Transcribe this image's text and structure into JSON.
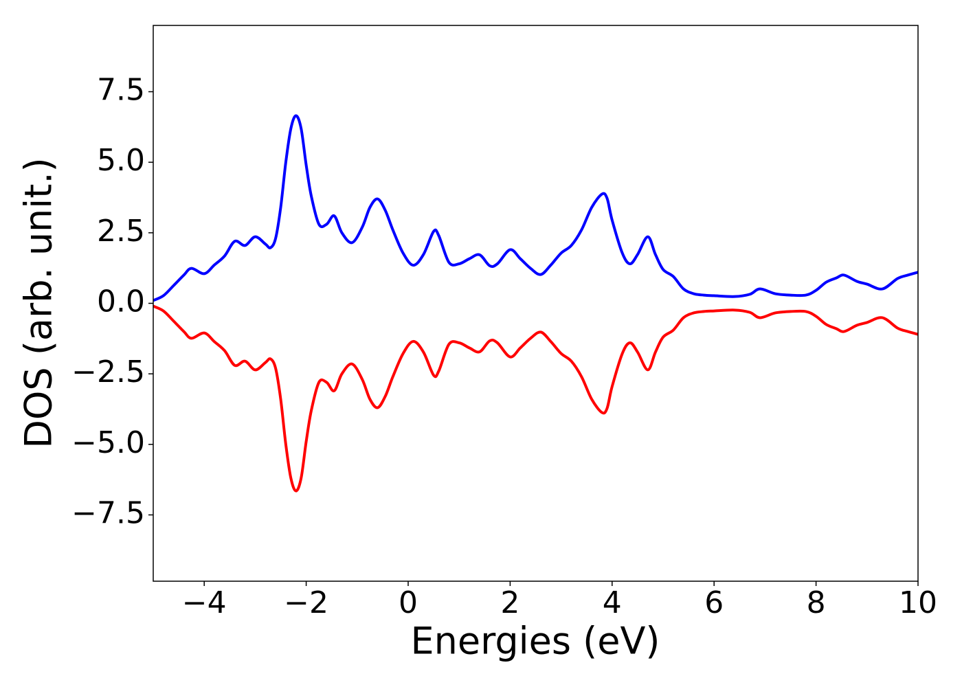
{
  "chart_data": {
    "type": "line",
    "xlabel": "Energies (eV)",
    "ylabel": "DOS (arb. unit.)",
    "x": [
      -5,
      -4.8,
      -4.6,
      -4.4,
      -4.25,
      -4.0,
      -3.8,
      -3.6,
      -3.4,
      -3.2,
      -3.0,
      -2.8,
      -2.7,
      -2.6,
      -2.5,
      -2.4,
      -2.3,
      -2.2,
      -2.1,
      -2.0,
      -1.9,
      -1.75,
      -1.6,
      -1.45,
      -1.3,
      -1.1,
      -0.9,
      -0.75,
      -0.6,
      -0.45,
      -0.3,
      -0.1,
      0.1,
      0.3,
      0.5,
      0.6,
      0.8,
      1.0,
      1.2,
      1.4,
      1.6,
      1.75,
      2.0,
      2.2,
      2.4,
      2.6,
      2.8,
      3.0,
      3.2,
      3.4,
      3.6,
      3.8,
      3.9,
      4.0,
      4.2,
      4.35,
      4.5,
      4.7,
      4.85,
      5.0,
      5.2,
      5.4,
      5.6,
      5.8,
      6.0,
      6.4,
      6.7,
      6.9,
      7.2,
      7.5,
      7.8,
      8.0,
      8.2,
      8.4,
      8.55,
      8.8,
      9.0,
      9.3,
      9.6,
      9.8,
      10.0
    ],
    "series": [
      {
        "color": "#0000ff",
        "values": [
          0.1,
          0.27,
          0.63,
          1.0,
          1.24,
          1.05,
          1.36,
          1.68,
          2.2,
          2.05,
          2.36,
          2.1,
          1.97,
          2.3,
          3.4,
          5.0,
          6.2,
          6.65,
          6.2,
          4.9,
          3.8,
          2.8,
          2.8,
          3.1,
          2.5,
          2.15,
          2.7,
          3.4,
          3.7,
          3.3,
          2.6,
          1.78,
          1.35,
          1.73,
          2.55,
          2.4,
          1.45,
          1.4,
          1.58,
          1.72,
          1.33,
          1.4,
          1.9,
          1.58,
          1.24,
          1.02,
          1.36,
          1.78,
          2.05,
          2.6,
          3.4,
          3.87,
          3.73,
          2.95,
          1.78,
          1.4,
          1.73,
          2.36,
          1.73,
          1.2,
          0.95,
          0.51,
          0.34,
          0.29,
          0.27,
          0.24,
          0.32,
          0.51,
          0.34,
          0.29,
          0.29,
          0.46,
          0.75,
          0.9,
          1.0,
          0.78,
          0.68,
          0.51,
          0.88,
          1.0,
          1.1
        ]
      },
      {
        "color": "#ff0000",
        "values": [
          -0.1,
          -0.27,
          -0.63,
          -1.0,
          -1.24,
          -1.05,
          -1.36,
          -1.68,
          -2.2,
          -2.05,
          -2.36,
          -2.1,
          -1.97,
          -2.3,
          -3.4,
          -5.0,
          -6.2,
          -6.65,
          -6.2,
          -4.9,
          -3.8,
          -2.8,
          -2.8,
          -3.1,
          -2.5,
          -2.15,
          -2.7,
          -3.4,
          -3.7,
          -3.3,
          -2.6,
          -1.78,
          -1.35,
          -1.73,
          -2.55,
          -2.4,
          -1.45,
          -1.4,
          -1.58,
          -1.72,
          -1.33,
          -1.4,
          -1.9,
          -1.58,
          -1.24,
          -1.02,
          -1.36,
          -1.78,
          -2.05,
          -2.6,
          -3.4,
          -3.87,
          -3.73,
          -2.95,
          -1.78,
          -1.4,
          -1.73,
          -2.36,
          -1.73,
          -1.2,
          -0.95,
          -0.51,
          -0.34,
          -0.29,
          -0.27,
          -0.24,
          -0.32,
          -0.51,
          -0.34,
          -0.29,
          -0.29,
          -0.46,
          -0.75,
          -0.9,
          -1.0,
          -0.78,
          -0.68,
          -0.51,
          -0.88,
          -1.0,
          -1.1
        ]
      }
    ],
    "xlim": [
      -5,
      10
    ],
    "ylim": [
      -9.85,
      9.85
    ],
    "xticks": [
      {
        "value": -4,
        "label": "−4"
      },
      {
        "value": -2,
        "label": "−2"
      },
      0,
      2,
      4,
      6,
      8,
      10
    ],
    "yticks": [
      {
        "value": -7.5,
        "label": "−7.5"
      },
      {
        "value": -5,
        "label": "−5.0"
      },
      {
        "value": -2.5,
        "label": "−2.5"
      },
      {
        "value": 0,
        "label": "0.0"
      },
      {
        "value": 2.5,
        "label": "2.5"
      },
      {
        "value": 5,
        "label": "5.0"
      },
      {
        "value": 7.5,
        "label": "7.5"
      }
    ],
    "grid": false
  }
}
